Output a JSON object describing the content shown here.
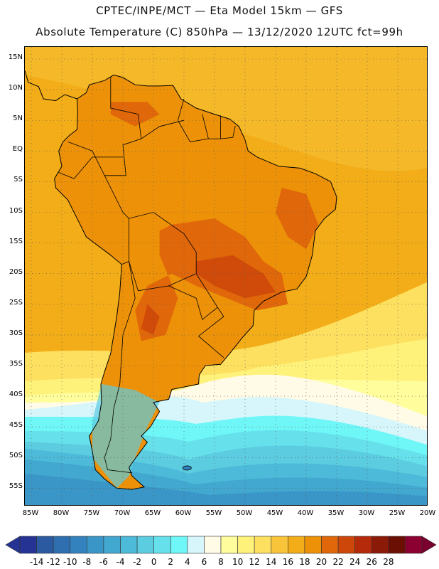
{
  "header": {
    "line1": "CPTEC/INPE/MCT —  Eta Model 15km — GFS",
    "line2": "Absolute Temperature (C) 850hPa — 13/12/2020 12UTC fct=99h"
  },
  "map": {
    "lat_labels": [
      "15N",
      "10N",
      "5N",
      "EQ",
      "5S",
      "10S",
      "15S",
      "20S",
      "25S",
      "30S",
      "35S",
      "40S",
      "45S",
      "50S",
      "55S"
    ],
    "lon_labels": [
      "85W",
      "80W",
      "75W",
      "70W",
      "65W",
      "60W",
      "55W",
      "50W",
      "45W",
      "40W",
      "35W",
      "30W",
      "25W",
      "20W"
    ],
    "lat_values": [
      15,
      10,
      5,
      0,
      -5,
      -10,
      -15,
      -20,
      -25,
      -30,
      -35,
      -40,
      -45,
      -50,
      -55
    ],
    "lon_values": [
      -85,
      -80,
      -75,
      -70,
      -65,
      -60,
      -55,
      -50,
      -45,
      -40,
      -35,
      -30,
      -25,
      -20
    ]
  },
  "colorbar": {
    "labels": [
      "-14",
      "-12",
      "-10",
      "-8",
      "-6",
      "-4",
      "-2",
      "0",
      "2",
      "4",
      "6",
      "8",
      "10",
      "12",
      "14",
      "16",
      "18",
      "20",
      "22",
      "24",
      "26",
      "28"
    ],
    "colors": [
      "#253494",
      "#2c5aa0",
      "#2f6fb0",
      "#3382bd",
      "#3a96c6",
      "#42a8cf",
      "#4cbad8",
      "#5ccce0",
      "#66e0ea",
      "#6ff6f7",
      "#d6f6fb",
      "#fffbe6",
      "#fffd9c",
      "#fff27a",
      "#fde060",
      "#f7c43a",
      "#f2ad19",
      "#ed9208",
      "#e0670a",
      "#cd470b",
      "#b42a0a",
      "#8c1a08",
      "#6b0f05",
      "#8b0030"
    ],
    "left_color": "#253494",
    "right_color": "#7a0030"
  },
  "fill": {
    "ocean_base": "#f2ad19",
    "land_warm": "#ed9208",
    "land_hot": "#e0670a",
    "cold_south": "#3a96c6"
  }
}
